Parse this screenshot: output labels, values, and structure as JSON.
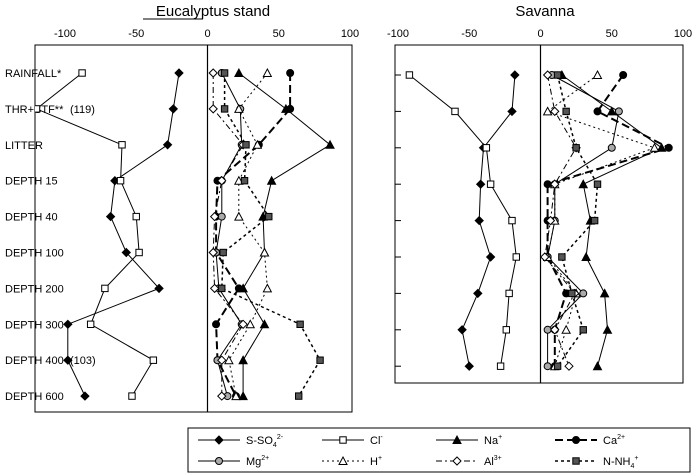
{
  "chart_data": [
    {
      "type": "line",
      "title": "Eucalyptus stand",
      "xlim": [
        -100,
        100
      ],
      "x_ticks": [
        -100,
        -50,
        0,
        50,
        100
      ],
      "categories": [
        "RAINFALL*",
        "THR+STF**",
        "LITTER",
        "DEPTH 15",
        "DEPTH 40",
        "DEPTH 100",
        "DEPTH 200",
        "DEPTH 300",
        "DEPTH 400",
        "DEPTH 600"
      ],
      "annotations": [
        {
          "text": "(119)",
          "category": "THR+STF**"
        },
        {
          "text": "(103)",
          "category": "DEPTH 400"
        }
      ],
      "series": [
        {
          "key": "sso4",
          "values": [
            -20,
            -24,
            -28,
            -65,
            -68,
            -57,
            -34,
            -98,
            -98,
            -86
          ]
        },
        {
          "key": "cl",
          "values": [
            -88,
            -120,
            -60,
            -61,
            -50,
            -48,
            -72,
            -82,
            -38,
            -53
          ]
        },
        {
          "key": "na",
          "values": [
            22,
            55,
            86,
            45,
            39,
            40,
            25,
            40,
            25,
            25
          ]
        },
        {
          "key": "ca",
          "values": [
            58,
            58,
            36,
            7,
            6,
            6,
            22,
            6,
            7,
            20
          ]
        },
        {
          "key": "mg",
          "values": [
            10,
            23,
            24,
            10,
            10,
            6,
            8,
            24,
            7,
            14
          ]
        },
        {
          "key": "h",
          "values": [
            42,
            22,
            35,
            22,
            22,
            40,
            42,
            30,
            15,
            20
          ]
        },
        {
          "key": "al",
          "values": [
            4,
            4,
            25,
            10,
            5,
            4,
            5,
            25,
            10,
            10
          ]
        },
        {
          "key": "nnh4",
          "values": [
            12,
            12,
            27,
            26,
            43,
            11,
            10,
            65,
            79,
            64
          ]
        }
      ]
    },
    {
      "type": "line",
      "title": "Savanna",
      "xlim": [
        -100,
        100
      ],
      "x_ticks": [
        -100,
        -50,
        0,
        50,
        100
      ],
      "categories": [
        "RAINFALL",
        "THR+STF",
        "LITTER",
        "DEPTH 15",
        "DEPTH 40",
        "DEPTH 100",
        "DEPTH 200",
        "DEPTH 300",
        "DEPTH 400"
      ],
      "series": [
        {
          "key": "sso4",
          "values": [
            -18,
            -20,
            -40,
            -42,
            -43,
            -35,
            -44,
            -55,
            -50
          ]
        },
        {
          "key": "cl",
          "values": [
            -92,
            -60,
            -38,
            -35,
            -20,
            -17,
            -22,
            -24,
            -28
          ]
        },
        {
          "key": "na",
          "values": [
            15,
            50,
            85,
            30,
            35,
            32,
            45,
            47,
            40
          ]
        },
        {
          "key": "ca",
          "values": [
            58,
            40,
            90,
            5,
            5,
            5,
            18,
            10,
            10
          ]
        },
        {
          "key": "mg",
          "values": [
            8,
            55,
            50,
            10,
            10,
            5,
            30,
            5,
            5
          ]
        },
        {
          "key": "h",
          "values": [
            40,
            5,
            80,
            10,
            10,
            5,
            25,
            18,
            10
          ]
        },
        {
          "key": "al",
          "values": [
            5,
            10,
            25,
            10,
            7,
            3,
            24,
            10,
            20
          ]
        },
        {
          "key": "nnh4",
          "values": [
            12,
            18,
            25,
            40,
            38,
            15,
            22,
            30,
            12
          ]
        }
      ]
    }
  ],
  "legend": [
    {
      "key": "sso4",
      "label": "S-SO",
      "sub": "4",
      "sup": "2-"
    },
    {
      "key": "cl",
      "label": "Cl",
      "sub": "",
      "sup": "-"
    },
    {
      "key": "na",
      "label": "Na",
      "sub": "",
      "sup": "+"
    },
    {
      "key": "ca",
      "label": "Ca",
      "sub": "",
      "sup": "2+"
    },
    {
      "key": "mg",
      "label": "Mg",
      "sub": "",
      "sup": "2+"
    },
    {
      "key": "h",
      "label": "H",
      "sub": "",
      "sup": "+"
    },
    {
      "key": "al",
      "label": "Al",
      "sub": "",
      "sup": "3+"
    },
    {
      "key": "nnh4",
      "label": "N-NH",
      "sub": "4",
      "sup": "+"
    }
  ],
  "colors": {
    "line": "#000000",
    "mg_fill": "#aaaaaa",
    "nnh4_fill": "#555555"
  }
}
